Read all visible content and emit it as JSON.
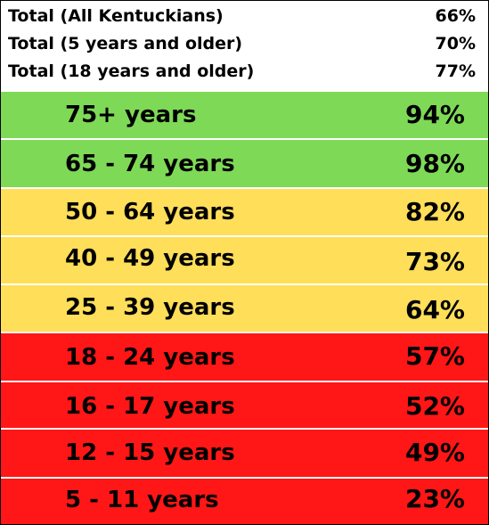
{
  "colors": {
    "green": "#7ed957",
    "yellow": "#ffde59",
    "red": "#ff1616"
  },
  "totals": [
    {
      "label": "Total (All Kentuckians)",
      "value": "66%"
    },
    {
      "label": "Total (5 years and older)",
      "value": "70%"
    },
    {
      "label": "Total (18 years and older)",
      "value": "77%"
    }
  ],
  "age_groups": [
    {
      "label": "75+  years",
      "value": "94%",
      "color": "green"
    },
    {
      "label": "65 - 74 years",
      "value": "98%",
      "color": "green"
    },
    {
      "label": "50 - 64 years",
      "value": "82%",
      "color": "yellow"
    },
    {
      "label": "40 - 49 years",
      "value": "73%",
      "color": "yellow"
    },
    {
      "label": "25 - 39 years",
      "value": "64%",
      "color": "yellow"
    },
    {
      "label": "18 - 24 years",
      "value": "57%",
      "color": "red"
    },
    {
      "label": "16 - 17 years",
      "value": "52%",
      "color": "red"
    },
    {
      "label": "12 - 15 years",
      "value": "49%",
      "color": "red"
    },
    {
      "label": "5 - 11 years",
      "value": "23%",
      "color": "red"
    }
  ]
}
